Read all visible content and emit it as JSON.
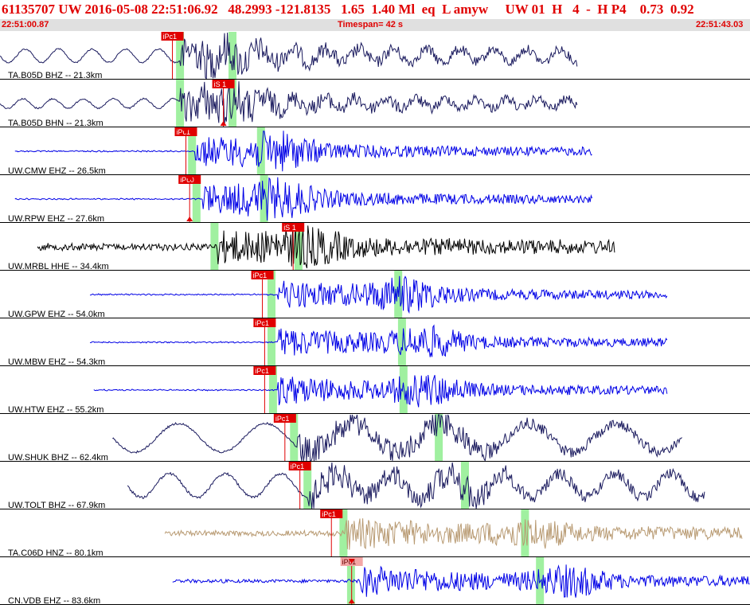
{
  "header": {
    "title": "61135707 UW 2016-05-08 22:51:06.92   48.2993 -121.8135   1.65  1.40 Ml  eq  L amyw     UW 01  H   4  -  H P4    0.73  0.92",
    "start_time": "22:51:00.87",
    "timespan": "Timespan=  42 s",
    "end_time": "22:51:43.03"
  },
  "colors": {
    "pick_box": "#e00000",
    "pick_box_light": "#f3a6a6",
    "trace_blue": "#0000e6",
    "trace_navy": "#1a1a5e",
    "trace_black": "#000000",
    "trace_tan": "#b89a72",
    "marker_green": "#a0f0a0",
    "divider": "#000000"
  },
  "channels": [
    {
      "label": "TA.B05D BHZ -- 21.3km",
      "color": "navy",
      "start": 0.0,
      "end": 0.77,
      "amp": 0.14,
      "noise": 0.03,
      "onset": 0.24,
      "burst": 0.3,
      "burst_amp": 0.28,
      "period": 42,
      "greens": [
        0.24,
        0.31
      ],
      "picks": [
        {
          "label": "iPc1",
          "pos": 0.215,
          "tri": "none"
        }
      ]
    },
    {
      "label": "TA.B05D BHN -- 21.3km",
      "color": "navy",
      "start": 0.0,
      "end": 0.77,
      "amp": 0.1,
      "noise": 0.03,
      "onset": 0.24,
      "burst": 0.31,
      "burst_amp": 0.35,
      "period": 38,
      "greens": [
        0.24,
        0.31
      ],
      "picks": [
        {
          "label": "iS 1",
          "pos": 0.283,
          "tri": "bottom"
        }
      ]
    },
    {
      "label": "UW.CMW EHZ -- 26.5km",
      "color": "blue",
      "start": 0.02,
      "end": 0.79,
      "amp": 0.02,
      "noise": 0.02,
      "onset": 0.26,
      "burst": 0.37,
      "burst_amp": 0.45,
      "period": 0,
      "greens": [
        0.256,
        0.348
      ],
      "picks": [
        {
          "label": "iPc1",
          "pos": 0.233,
          "tri": "top"
        }
      ]
    },
    {
      "label": "UW.RPW EHZ -- 27.6km",
      "color": "blue",
      "start": 0.02,
      "end": 0.79,
      "amp": 0.02,
      "noise": 0.02,
      "onset": 0.27,
      "burst": 0.37,
      "burst_amp": 0.45,
      "period": 0,
      "greens": [
        0.262,
        0.352
      ],
      "picks": [
        {
          "label": "iPc0",
          "pos": 0.238,
          "tri": "both"
        }
      ]
    },
    {
      "label": "UW.MRBL HHE -- 34.4km",
      "color": "black",
      "start": 0.05,
      "end": 0.82,
      "amp": 0.05,
      "noise": 0.12,
      "onset": 0.29,
      "burst": 0.41,
      "burst_amp": 0.38,
      "period": 0,
      "greens": [
        0.286,
        0.398
      ],
      "picks": [
        {
          "label": "iS 1",
          "pos": 0.376,
          "tri": "none"
        }
      ]
    },
    {
      "label": "UW.GPW EHZ -- 54.0km",
      "color": "blue",
      "start": 0.12,
      "end": 0.89,
      "amp": 0.02,
      "noise": 0.02,
      "onset": 0.37,
      "burst": 0.54,
      "burst_amp": 0.45,
      "period": 0,
      "greens": [
        0.362,
        0.531
      ],
      "picks": [
        {
          "label": "iPc1",
          "pos": 0.335,
          "tri": "none"
        }
      ]
    },
    {
      "label": "UW.MBW EHZ -- 54.3km",
      "color": "blue",
      "start": 0.12,
      "end": 0.89,
      "amp": 0.02,
      "noise": 0.02,
      "onset": 0.37,
      "burst": 0.57,
      "burst_amp": 0.4,
      "period": 0,
      "greens": [
        0.362,
        0.536
      ],
      "picks": [
        {
          "label": "iPc1",
          "pos": 0.338,
          "tri": "none"
        }
      ]
    },
    {
      "label": "UW.HTW EHZ -- 55.2km",
      "color": "blue",
      "start": 0.125,
      "end": 0.89,
      "amp": 0.02,
      "noise": 0.02,
      "onset": 0.37,
      "burst": 0.57,
      "burst_amp": 0.4,
      "period": 0,
      "greens": [
        0.364,
        0.538
      ],
      "picks": [
        {
          "label": "iPc1",
          "pos": 0.338,
          "tri": "none"
        }
      ]
    },
    {
      "label": "UW.SHUK BHZ -- 62.4km",
      "color": "navy",
      "start": 0.15,
      "end": 0.91,
      "amp": 0.3,
      "noise": 0.04,
      "onset": 0.395,
      "burst": 0.6,
      "burst_amp": 0.25,
      "period": 110,
      "greens": [
        0.392,
        0.585
      ],
      "picks": [
        {
          "label": "iPc1",
          "pos": 0.365,
          "tri": "none"
        }
      ]
    },
    {
      "label": "UW.TOLT BHZ -- 67.9km",
      "color": "navy",
      "start": 0.17,
      "end": 0.94,
      "amp": 0.25,
      "noise": 0.05,
      "onset": 0.41,
      "burst": 0.62,
      "burst_amp": 0.32,
      "period": 70,
      "greens": [
        0.41,
        0.62
      ],
      "picks": [
        {
          "label": "iPc1",
          "pos": 0.385,
          "tri": "none"
        }
      ]
    },
    {
      "label": "TA.C06D HNZ -- 80.1km",
      "color": "tan",
      "start": 0.22,
      "end": 0.99,
      "amp": 0.02,
      "noise": 0.1,
      "onset": 0.46,
      "burst": 0.71,
      "burst_amp": 0.32,
      "period": 0,
      "greens": [
        0.458,
        0.7
      ],
      "picks": [
        {
          "label": "iPc1",
          "pos": 0.427,
          "tri": "none"
        }
      ]
    },
    {
      "label": "CN.VDB EHZ -- 83.6km",
      "color": "blue",
      "start": 0.23,
      "end": 1.0,
      "amp": 0.02,
      "noise": 0.06,
      "onset": 0.48,
      "burst": 0.76,
      "burst_amp": 0.4,
      "period": 0,
      "greens": [
        0.468,
        0.72
      ],
      "picks": [
        {
          "label": "iPc1",
          "pos": 0.454,
          "tri": "both",
          "light": true
        }
      ]
    }
  ]
}
